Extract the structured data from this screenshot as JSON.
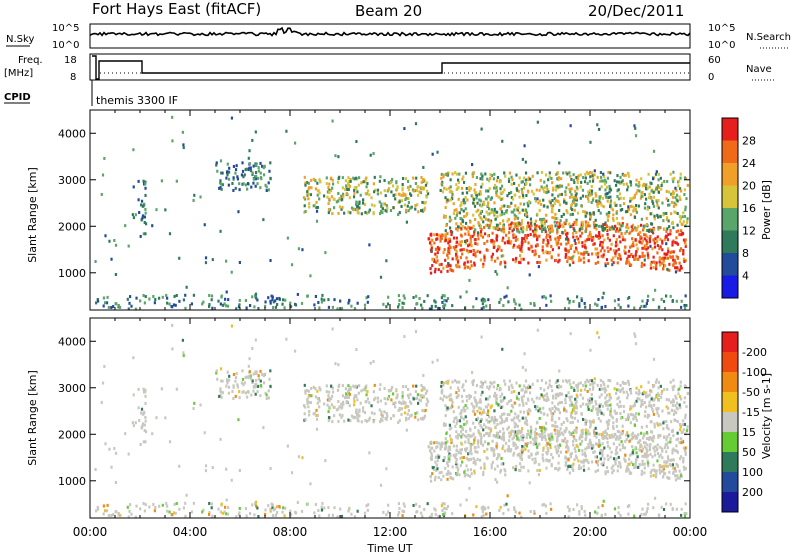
{
  "header": {
    "radar": "Fort Hays East (fitACF)",
    "beam": "Beam 20",
    "date": "20/Dec/2011"
  },
  "top_panels": {
    "nsky_label": "N.Sky",
    "nsky_ticks": [
      "10^5",
      "10^0"
    ],
    "nsearch_label": "N.Search",
    "nsearch_ticks": [
      "10^5",
      "10^0"
    ],
    "freq_label": "Freq.",
    "freq_unit": "[MHz]",
    "freq_ticks": [
      "18",
      "8"
    ],
    "nave_label": "Nave",
    "nave_ticks": [
      "60",
      "0"
    ],
    "cpid_label": "CPID",
    "cpid_value": "themis 3300 IF"
  },
  "chart_data": [
    {
      "type": "heatmap",
      "name": "power",
      "ylabel": "Slant Range [km]",
      "ylim": [
        200,
        4500
      ],
      "yticks": [
        1000,
        2000,
        3000,
        4000
      ],
      "xlim": [
        0,
        24
      ],
      "colorbar": {
        "label": "Power [dB]",
        "ticks": [
          "4",
          "8",
          "12",
          "16",
          "20",
          "24",
          "28"
        ],
        "colors": [
          "#1a1ae6",
          "#234b9b",
          "#2f7a5a",
          "#5aa56a",
          "#d6c43a",
          "#f0a028",
          "#f06a1a",
          "#e61e1e"
        ]
      },
      "features": [
        {
          "t_start": 1.9,
          "t_end": 2.2,
          "range_low": 1800,
          "range_high": 3100,
          "level": "weak"
        },
        {
          "t_start": 5.0,
          "t_end": 7.2,
          "range_low": 2800,
          "range_high": 3400,
          "level": "weak"
        },
        {
          "t_start": 8.5,
          "t_end": 13.5,
          "range_low": 2300,
          "range_high": 3100,
          "level": "moderate"
        },
        {
          "t_start": 13.5,
          "t_end": 23.8,
          "range_low": 900,
          "range_high": 2000,
          "level": "strong"
        },
        {
          "t_start": 14.0,
          "t_end": 24.0,
          "range_low": 1900,
          "range_high": 3200,
          "level": "moderate"
        }
      ]
    },
    {
      "type": "heatmap",
      "name": "velocity",
      "ylabel": "Slant Range [km]",
      "xlabel": "Time UT",
      "ylim": [
        200,
        4500
      ],
      "yticks": [
        1000,
        2000,
        3000,
        4000
      ],
      "xlim": [
        0,
        24
      ],
      "xticks": [
        "00:00",
        "04:00",
        "08:00",
        "12:00",
        "16:00",
        "20:00",
        "00:00"
      ],
      "colorbar": {
        "label": "Velocity [m s-1]",
        "ticks": [
          "200",
          "100",
          "50",
          "15",
          "-15",
          "-50",
          "-100",
          "-200"
        ],
        "colors": [
          "#1a1a9a",
          "#234b9b",
          "#2f7a5a",
          "#66cc33",
          "#c8c8c0",
          "#f0c020",
          "#f08a10",
          "#f04a10",
          "#e61e1e"
        ]
      },
      "ground_scatter_color": "#c8c8c0"
    }
  ]
}
